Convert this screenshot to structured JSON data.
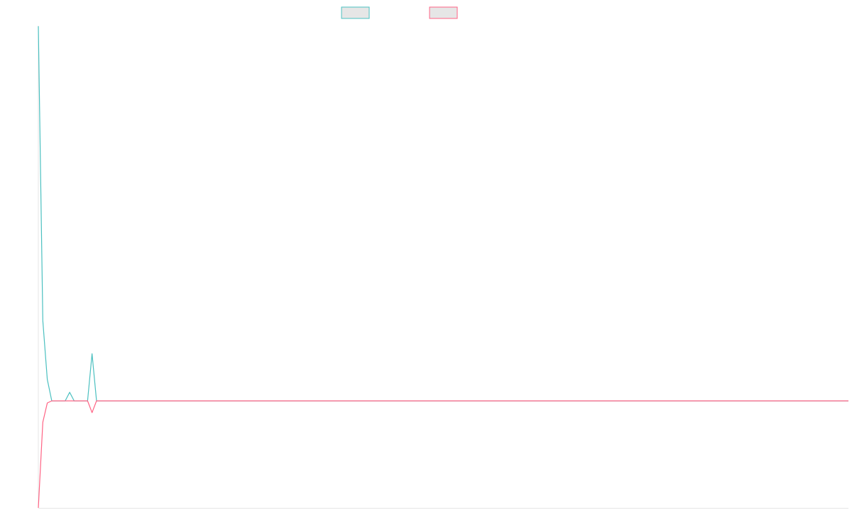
{
  "chart_data": {
    "type": "line",
    "x_count": 181,
    "ylim": [
      -500,
      1750
    ],
    "grid": false,
    "legend_placement": "top-center",
    "series": [
      {
        "name": "",
        "color": "#4bc0c0",
        "fill": "#e6e6e6",
        "points": [
          [
            0,
            1750
          ],
          [
            1,
            375
          ],
          [
            2,
            100
          ],
          [
            3,
            0
          ],
          [
            4,
            0
          ],
          [
            5,
            0
          ],
          [
            6,
            0
          ],
          [
            7,
            40
          ],
          [
            8,
            0
          ],
          [
            9,
            0
          ],
          [
            10,
            0
          ],
          [
            11,
            0
          ],
          [
            12,
            220
          ],
          [
            13,
            0
          ],
          [
            14,
            0
          ],
          [
            181,
            0
          ]
        ]
      },
      {
        "name": "",
        "color": "#ff6384",
        "fill": "#e6e6e6",
        "points": [
          [
            0,
            -500
          ],
          [
            1,
            -100
          ],
          [
            2,
            -10
          ],
          [
            3,
            0
          ],
          [
            4,
            0
          ],
          [
            5,
            0
          ],
          [
            6,
            0
          ],
          [
            7,
            0
          ],
          [
            8,
            0
          ],
          [
            9,
            0
          ],
          [
            10,
            0
          ],
          [
            11,
            0
          ],
          [
            12,
            -55
          ],
          [
            13,
            0
          ],
          [
            14,
            0
          ],
          [
            181,
            0
          ]
        ]
      }
    ]
  }
}
